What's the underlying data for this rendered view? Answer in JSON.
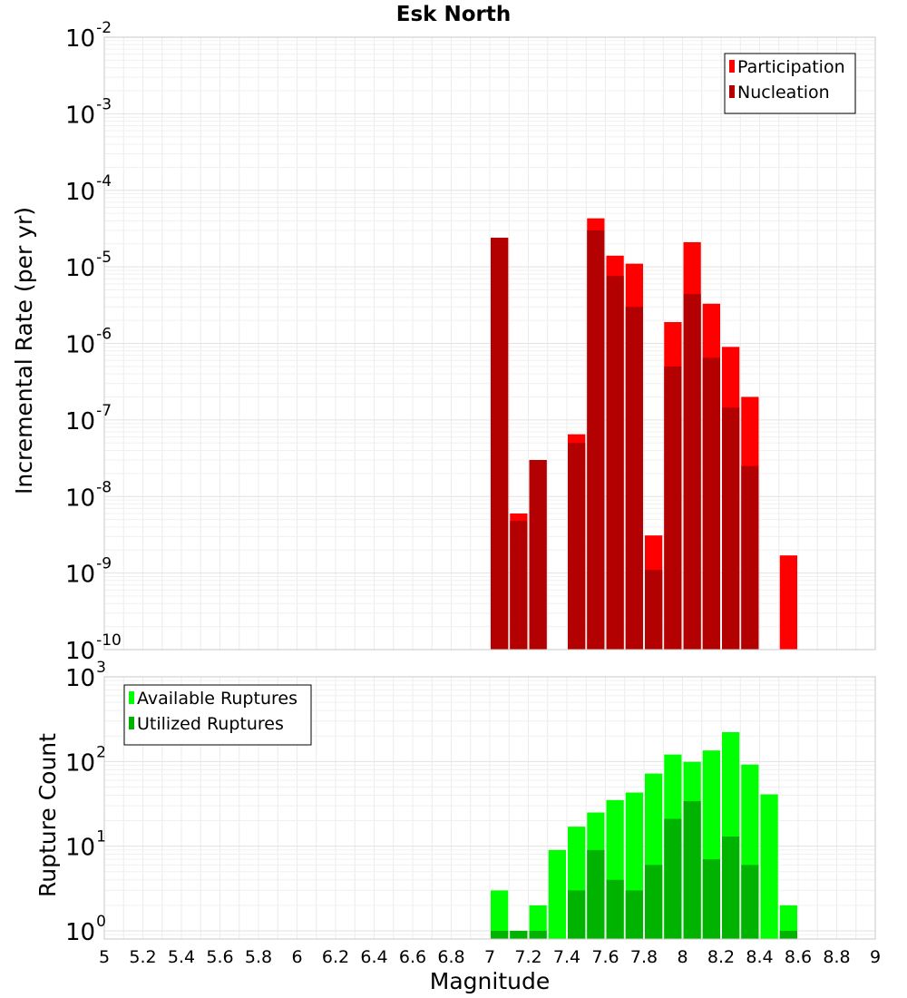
{
  "chart_data": [
    {
      "type": "bar",
      "title": "Esk North",
      "xlabel": "Magnitude",
      "ylabel": "Incremental Rate (per yr)",
      "scale_y": "log",
      "ylim": [
        1e-10,
        0.01
      ],
      "xlim": [
        5,
        9
      ],
      "bin_width": 0.1,
      "grid": true,
      "legend_position": "top-right",
      "ytick_exponents": [
        "-10",
        "-9",
        "-8",
        "-7",
        "-6",
        "-5",
        "-4",
        "-3",
        "-2"
      ],
      "series": [
        {
          "name": "Participation",
          "color": "#ff0000",
          "points": [
            {
              "x": 7.05,
              "y": 2.4e-05
            },
            {
              "x": 7.15,
              "y": 6e-09
            },
            {
              "x": 7.25,
              "y": 3e-08
            },
            {
              "x": 7.45,
              "y": 6.5e-08
            },
            {
              "x": 7.55,
              "y": 4.3e-05
            },
            {
              "x": 7.65,
              "y": 1.4e-05
            },
            {
              "x": 7.75,
              "y": 1.1e-05
            },
            {
              "x": 7.85,
              "y": 3.1e-09
            },
            {
              "x": 7.95,
              "y": 1.9e-06
            },
            {
              "x": 8.05,
              "y": 2.1e-05
            },
            {
              "x": 8.15,
              "y": 3.3e-06
            },
            {
              "x": 8.25,
              "y": 9e-07
            },
            {
              "x": 8.35,
              "y": 2e-07
            },
            {
              "x": 8.55,
              "y": 1.7e-09
            }
          ]
        },
        {
          "name": "Nucleation",
          "color": "#b30000",
          "points": [
            {
              "x": 7.05,
              "y": 2.4e-05
            },
            {
              "x": 7.15,
              "y": 4.8e-09
            },
            {
              "x": 7.25,
              "y": 3e-08
            },
            {
              "x": 7.45,
              "y": 5e-08
            },
            {
              "x": 7.55,
              "y": 3e-05
            },
            {
              "x": 7.65,
              "y": 7.6e-06
            },
            {
              "x": 7.75,
              "y": 3e-06
            },
            {
              "x": 7.85,
              "y": 1.1e-09
            },
            {
              "x": 7.95,
              "y": 5e-07
            },
            {
              "x": 8.05,
              "y": 4.4e-06
            },
            {
              "x": 8.15,
              "y": 6.5e-07
            },
            {
              "x": 8.25,
              "y": 1.45e-07
            },
            {
              "x": 8.35,
              "y": 2.5e-08
            }
          ]
        }
      ]
    },
    {
      "type": "bar",
      "xlabel": "Magnitude",
      "ylabel": "Rupture Count",
      "scale_y": "log",
      "ylim": [
        0.8,
        1000
      ],
      "xlim": [
        5,
        9
      ],
      "bin_width": 0.1,
      "grid": true,
      "legend_position": "top-left",
      "ytick_exponents": [
        "0",
        "1",
        "2",
        "3"
      ],
      "xticks": [
        "5",
        "5.2",
        "5.4",
        "5.6",
        "5.8",
        "6",
        "6.2",
        "6.4",
        "6.6",
        "6.8",
        "7",
        "7.2",
        "7.4",
        "7.6",
        "7.8",
        "8",
        "8.2",
        "8.4",
        "8.6",
        "8.8",
        "9"
      ],
      "series": [
        {
          "name": "Available Ruptures",
          "color": "#00ff00",
          "points": [
            {
              "x": 7.05,
              "y": 3
            },
            {
              "x": 7.15,
              "y": 1
            },
            {
              "x": 7.25,
              "y": 2
            },
            {
              "x": 7.35,
              "y": 9
            },
            {
              "x": 7.45,
              "y": 17
            },
            {
              "x": 7.55,
              "y": 25
            },
            {
              "x": 7.65,
              "y": 35
            },
            {
              "x": 7.75,
              "y": 43
            },
            {
              "x": 7.85,
              "y": 72
            },
            {
              "x": 7.95,
              "y": 121
            },
            {
              "x": 8.05,
              "y": 99
            },
            {
              "x": 8.15,
              "y": 135
            },
            {
              "x": 8.25,
              "y": 222
            },
            {
              "x": 8.35,
              "y": 92
            },
            {
              "x": 8.45,
              "y": 41
            },
            {
              "x": 8.55,
              "y": 2
            }
          ]
        },
        {
          "name": "Utilized Ruptures",
          "color": "#00b300",
          "points": [
            {
              "x": 7.05,
              "y": 1
            },
            {
              "x": 7.15,
              "y": 1
            },
            {
              "x": 7.25,
              "y": 1
            },
            {
              "x": 7.45,
              "y": 3
            },
            {
              "x": 7.55,
              "y": 9
            },
            {
              "x": 7.65,
              "y": 4
            },
            {
              "x": 7.75,
              "y": 3
            },
            {
              "x": 7.85,
              "y": 6
            },
            {
              "x": 7.95,
              "y": 21
            },
            {
              "x": 8.05,
              "y": 34
            },
            {
              "x": 8.15,
              "y": 7
            },
            {
              "x": 8.25,
              "y": 13
            },
            {
              "x": 8.35,
              "y": 6
            },
            {
              "x": 8.55,
              "y": 1
            }
          ]
        }
      ]
    }
  ]
}
